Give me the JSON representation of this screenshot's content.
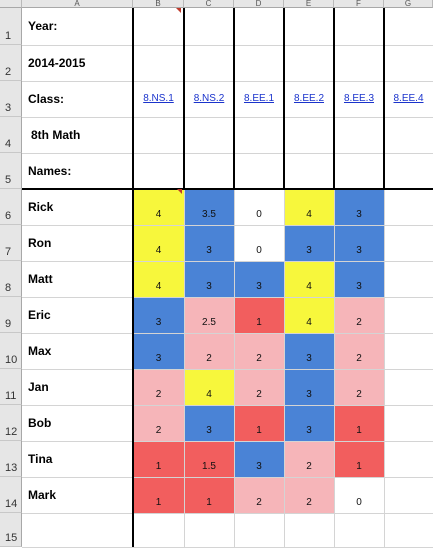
{
  "columns": [
    "A",
    "B",
    "C",
    "D",
    "E",
    "F",
    "G"
  ],
  "rows": [
    "1",
    "2",
    "3",
    "4",
    "5",
    "6",
    "7",
    "8",
    "9",
    "10",
    "11",
    "12",
    "13",
    "14",
    "15"
  ],
  "labels": {
    "year_label": "Year:",
    "year_value": "2014-2015",
    "class_label": "Class:",
    "class_value": "8th Math",
    "names_label": "Names:"
  },
  "standards": [
    "8.NS.1",
    "8.NS.2",
    "8.EE.1",
    "8.EE.2",
    "8.EE.3",
    "8.EE.4"
  ],
  "students": [
    {
      "name": "Rick",
      "scores": [
        "4",
        "3.5",
        "0",
        "4",
        "3"
      ],
      "colors": [
        "yellow",
        "blue",
        "white",
        "yellow",
        "blue"
      ]
    },
    {
      "name": "Ron",
      "scores": [
        "4",
        "3",
        "0",
        "3",
        "3"
      ],
      "colors": [
        "yellow",
        "blue",
        "white",
        "blue",
        "blue"
      ]
    },
    {
      "name": "Matt",
      "scores": [
        "4",
        "3",
        "3",
        "4",
        "3"
      ],
      "colors": [
        "yellow",
        "blue",
        "blue",
        "yellow",
        "blue"
      ]
    },
    {
      "name": "Eric",
      "scores": [
        "3",
        "2.5",
        "1",
        "4",
        "2"
      ],
      "colors": [
        "blue",
        "pink",
        "red",
        "yellow",
        "pink"
      ]
    },
    {
      "name": "Max",
      "scores": [
        "3",
        "2",
        "2",
        "3",
        "2"
      ],
      "colors": [
        "blue",
        "pink",
        "pink",
        "blue",
        "pink"
      ]
    },
    {
      "name": "Jan",
      "scores": [
        "2",
        "4",
        "2",
        "3",
        "2"
      ],
      "colors": [
        "pink",
        "yellow",
        "pink",
        "blue",
        "pink"
      ]
    },
    {
      "name": "Bob",
      "scores": [
        "2",
        "3",
        "1",
        "3",
        "1"
      ],
      "colors": [
        "pink",
        "blue",
        "red",
        "blue",
        "red"
      ]
    },
    {
      "name": "Tina",
      "scores": [
        "1",
        "1.5",
        "3",
        "2",
        "1"
      ],
      "colors": [
        "red",
        "red",
        "blue",
        "pink",
        "red"
      ]
    },
    {
      "name": "Mark",
      "scores": [
        "1",
        "1",
        "2",
        "2",
        "0"
      ],
      "colors": [
        "red",
        "red",
        "pink",
        "pink",
        "white"
      ]
    }
  ],
  "palette": {
    "yellow": "#f7f73c",
    "blue": "#4a83d6",
    "pink": "#f6b5b9",
    "red": "#f25e5e",
    "white": "#ffffff"
  }
}
